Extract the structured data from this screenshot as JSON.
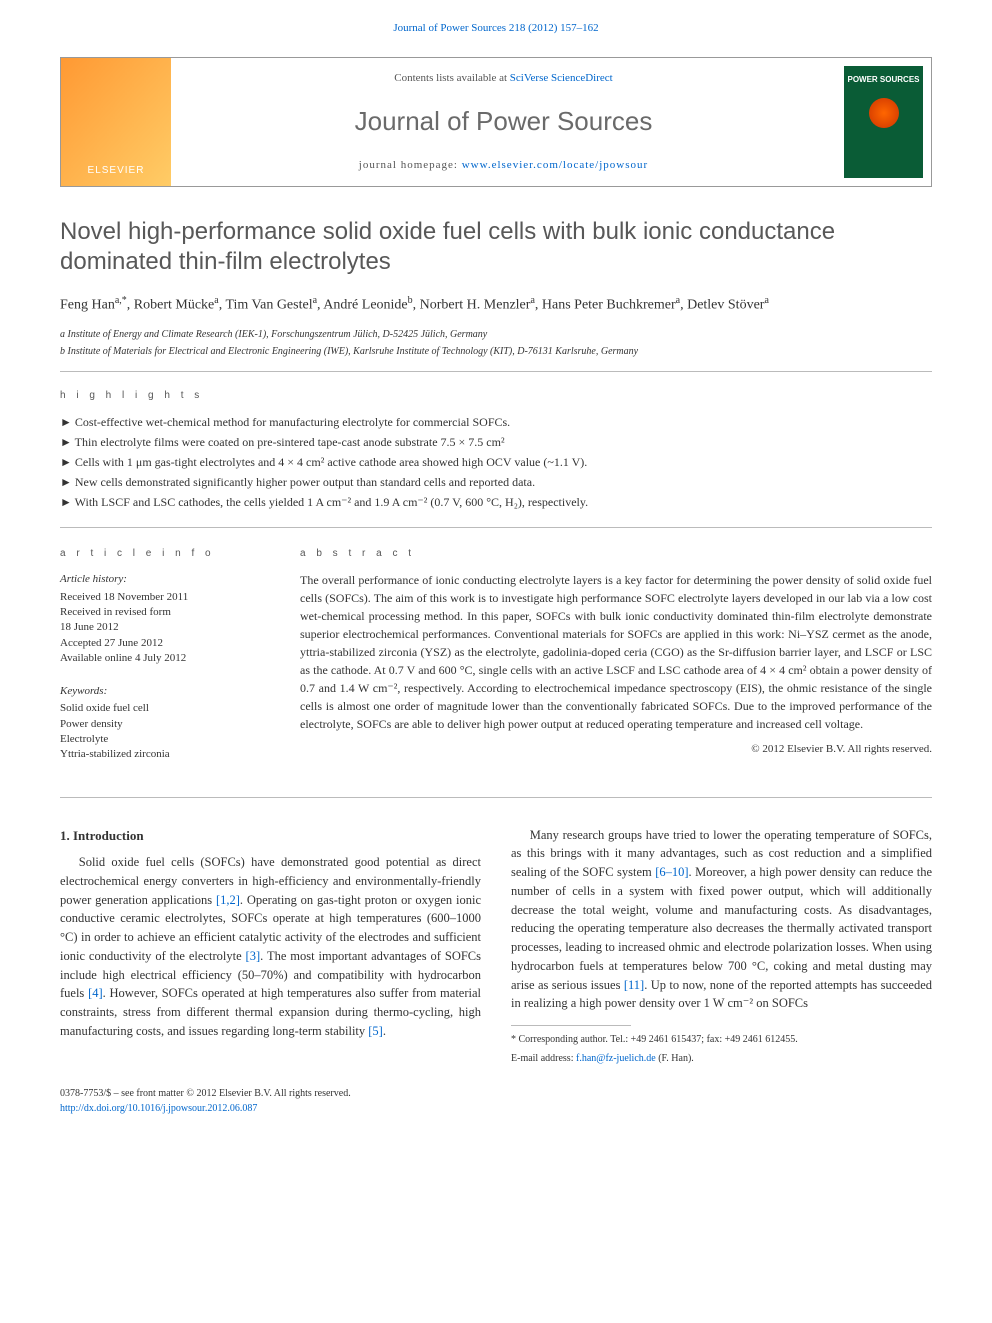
{
  "header": {
    "citation": "Journal of Power Sources 218 (2012) 157–162",
    "citation_link_text": "Journal of Power Sources 218 (2012) 157–162"
  },
  "masthead": {
    "publisher_logo_text": "ELSEVIER",
    "contents_prefix": "Contents lists available at ",
    "contents_link": "SciVerse ScienceDirect",
    "journal_name": "Journal of Power Sources",
    "homepage_prefix": "journal homepage: ",
    "homepage_link": "www.elsevier.com/locate/jpowsour",
    "cover_title": "POWER SOURCES"
  },
  "article": {
    "title": "Novel high-performance solid oxide fuel cells with bulk ionic conductance dominated thin-film electrolytes",
    "authors_html": "Feng Han<sup>a,*</sup>, Robert Mücke<sup>a</sup>, Tim Van Gestel<sup>a</sup>, André Leonide<sup>b</sup>, Norbert H. Menzler<sup>a</sup>, Hans Peter Buchkremer<sup>a</sup>, Detlev Stöver<sup>a</sup>",
    "affiliations": [
      "a Institute of Energy and Climate Research (IEK-1), Forschungszentrum Jülich, D-52425 Jülich, Germany",
      "b Institute of Materials for Electrical and Electronic Engineering (IWE), Karlsruhe Institute of Technology (KIT), D-76131 Karlsruhe, Germany"
    ]
  },
  "highlights": {
    "label": "h i g h l i g h t s",
    "items": [
      "Cost-effective wet-chemical method for manufacturing electrolyte for commercial SOFCs.",
      "Thin electrolyte films were coated on pre-sintered tape-cast anode substrate 7.5 × 7.5 cm²",
      "Cells with 1 μm gas-tight electrolytes and 4 × 4 cm² active cathode area showed high OCV value (~1.1 V).",
      "New cells demonstrated significantly higher power output than standard cells and reported data.",
      "With LSCF and LSC cathodes, the cells yielded 1 A cm⁻² and 1.9 A cm⁻² (0.7 V, 600 °C, H₂), respectively."
    ]
  },
  "info": {
    "label": "a r t i c l e   i n f o",
    "history_head": "Article history:",
    "history": [
      "Received 18 November 2011",
      "Received in revised form",
      "18 June 2012",
      "Accepted 27 June 2012",
      "Available online 4 July 2012"
    ],
    "keywords_head": "Keywords:",
    "keywords": [
      "Solid oxide fuel cell",
      "Power density",
      "Electrolyte",
      "Yttria-stabilized zirconia"
    ]
  },
  "abstract": {
    "label": "a b s t r a c t",
    "text": "The overall performance of ionic conducting electrolyte layers is a key factor for determining the power density of solid oxide fuel cells (SOFCs). The aim of this work is to investigate high performance SOFC electrolyte layers developed in our lab via a low cost wet-chemical processing method. In this paper, SOFCs with bulk ionic conductivity dominated thin-film electrolyte demonstrate superior electrochemical performances. Conventional materials for SOFCs are applied in this work: Ni–YSZ cermet as the anode, yttria-stabilized zirconia (YSZ) as the electrolyte, gadolinia-doped ceria (CGO) as the Sr-diffusion barrier layer, and LSCF or LSC as the cathode. At 0.7 V and 600 °C, single cells with an active LSCF and LSC cathode area of 4 × 4 cm² obtain a power density of 0.7 and 1.4 W cm⁻², respectively. According to electrochemical impedance spectroscopy (EIS), the ohmic resistance of the single cells is almost one order of magnitude lower than the conventionally fabricated SOFCs. Due to the improved performance of the electrolyte, SOFCs are able to deliver high power output at reduced operating temperature and increased cell voltage.",
    "copyright": "© 2012 Elsevier B.V. All rights reserved."
  },
  "intro": {
    "heading": "1. Introduction",
    "p1_pre": "Solid oxide fuel cells (SOFCs) have demonstrated good potential as direct electrochemical energy converters in high-efficiency and environmentally-friendly power generation applications ",
    "ref_1_2": "[1,2]",
    "p1_mid1": ". Operating on gas-tight proton or oxygen ionic conductive ceramic electrolytes, SOFCs operate at high temperatures (600–1000 °C) in order to achieve an efficient catalytic activity of the electrodes and sufficient ionic conductivity of the electrolyte ",
    "ref_3": "[3]",
    "p1_mid2": ". The most important advantages of SOFCs include high electrical efficiency (50–70%) and compatibility with hydrocarbon fuels ",
    "ref_4": "[4]",
    "p1_mid3": ". However, SOFCs operated at high temperatures also suffer from material constraints, stress from different thermal expansion during thermo-cycling, high manufacturing costs, and issues regarding long-term stability ",
    "ref_5": "[5]",
    "p1_end": ".",
    "p2_pre": "Many research groups have tried to lower the operating temperature of SOFCs, as this brings with it many advantages, such as cost reduction and a simplified sealing of the SOFC system ",
    "ref_6_10": "[6–10]",
    "p2_mid1": ". Moreover, a high power density can reduce the number of cells in a system with fixed power output, which will additionally decrease the total weight, volume and manufacturing costs. As disadvantages, reducing the operating temperature also decreases the thermally activated transport processes, leading to increased ohmic and electrode polarization losses. When using hydrocarbon fuels at temperatures below 700 °C, coking and metal dusting may arise as serious issues ",
    "ref_11": "[11]",
    "p2_end": ". Up to now, none of the reported attempts has succeeded in realizing a high power density over 1 W cm⁻² on SOFCs"
  },
  "corr": {
    "line1": "* Corresponding author. Tel.: +49 2461 615437; fax: +49 2461 612455.",
    "line2_pre": "E-mail address: ",
    "email": "f.han@fz-juelich.de",
    "line2_post": " (F. Han)."
  },
  "footer": {
    "line1": "0378-7753/$ – see front matter © 2012 Elsevier B.V. All rights reserved.",
    "doi": "http://dx.doi.org/10.1016/j.jpowsour.2012.06.087"
  }
}
